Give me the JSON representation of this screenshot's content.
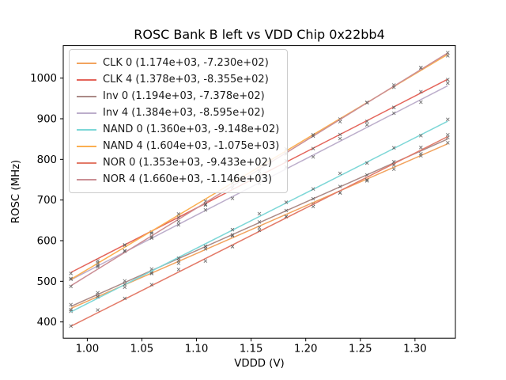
{
  "figure": {
    "title": "ROSC Bank B left vs VDD Chip 0x22bb4",
    "xlabel": "VDDD (V)",
    "ylabel": "ROSC (MHz)"
  },
  "chart_data": {
    "type": "line",
    "title": "ROSC Bank B left vs VDD Chip 0x22bb4",
    "xlabel": "VDDD (V)",
    "ylabel": "ROSC (MHz)",
    "xlim": [
      0.978,
      1.337
    ],
    "ylim": [
      360,
      1080
    ],
    "xticks": [
      "1.00",
      "1.05",
      "1.10",
      "1.15",
      "1.20",
      "1.25",
      "1.30"
    ],
    "yticks": [
      400,
      500,
      600,
      700,
      800,
      900,
      1000
    ],
    "grid": false,
    "legend_position": "upper left",
    "fit_model": "y = slope * x + intercept (legend shows slope, intercept)",
    "x_points": [
      0.985,
      1.0096,
      1.0343,
      1.0589,
      1.0836,
      1.1082,
      1.1329,
      1.1575,
      1.1821,
      1.2068,
      1.2314,
      1.2561,
      1.2807,
      1.3054,
      1.33
    ],
    "series": [
      {
        "name": "CLK 0",
        "legend_label": "CLK 0 (1.174e+03, -7.230e+02)",
        "slope": 1174,
        "intercept": -723.0,
        "color": "#f2a35e"
      },
      {
        "name": "CLK 4",
        "legend_label": "CLK 4 (1.378e+03, -8.355e+02)",
        "slope": 1378,
        "intercept": -835.5,
        "color": "#e4655b"
      },
      {
        "name": "Inv 0",
        "legend_label": "Inv 0 (1.194e+03, -7.378e+02)",
        "slope": 1194,
        "intercept": -737.8,
        "color": "#ab8a87"
      },
      {
        "name": "Inv 4",
        "legend_label": "Inv 4 (1.384e+03, -8.595e+02)",
        "slope": 1384,
        "intercept": -859.5,
        "color": "#bcaecb"
      },
      {
        "name": "NAND 0",
        "legend_label": "NAND 0 (1.360e+03, -9.148e+02)",
        "slope": 1360,
        "intercept": -914.8,
        "color": "#7dd7d7"
      },
      {
        "name": "NAND 4",
        "legend_label": "NAND 4 (1.604e+03, -1.075e+03)",
        "slope": 1604,
        "intercept": -1075.0,
        "color": "#fbaf51"
      },
      {
        "name": "NOR 0",
        "legend_label": "NOR 0 (1.353e+03, -9.433e+02)",
        "slope": 1353,
        "intercept": -943.3,
        "color": "#e37a68"
      },
      {
        "name": "NOR 4",
        "legend_label": "NOR 4 (1.660e+03, -1.146e+03)",
        "slope": 1660,
        "intercept": -1146.0,
        "color": "#cb8f95"
      }
    ]
  }
}
